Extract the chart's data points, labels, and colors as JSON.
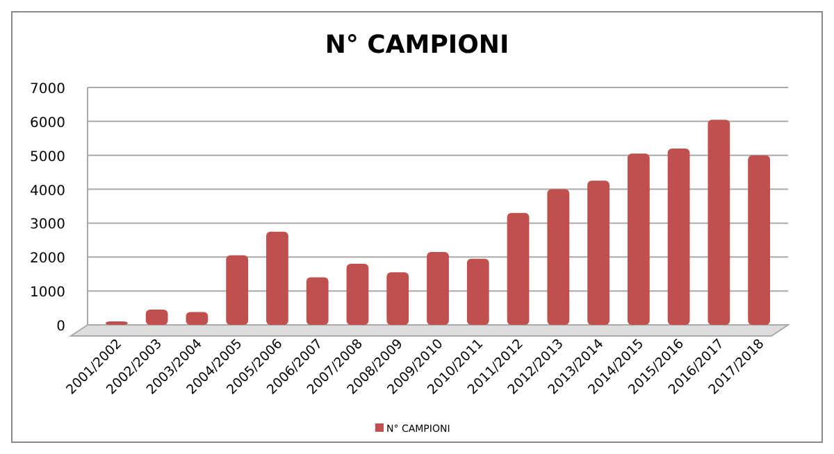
{
  "chart_data": {
    "type": "bar",
    "title": "N°  CAMPIONI",
    "categories": [
      "2001/2002",
      "2002/2003",
      "2003/2004",
      "2004/2005",
      "2005/2006",
      "2006/2007",
      "2007/2008",
      "2008/2009",
      "2009/2010",
      "2010/2011",
      "2011/2012",
      "2012/2013",
      "2013/2014",
      "2014/2015",
      "2015/2016",
      "2016/2017",
      "2017/2018"
    ],
    "series": [
      {
        "name": "N° CAMPIONI",
        "color": "#c0504d",
        "values": [
          100,
          450,
          380,
          2050,
          2750,
          1400,
          1800,
          1550,
          2150,
          1950,
          3300,
          4000,
          4250,
          5050,
          5200,
          6050,
          5000
        ]
      }
    ],
    "ylim": [
      0,
      7000
    ],
    "yticks": [
      0,
      1000,
      2000,
      3000,
      4000,
      5000,
      6000,
      7000
    ],
    "grid": "y",
    "legend": "bottom"
  }
}
